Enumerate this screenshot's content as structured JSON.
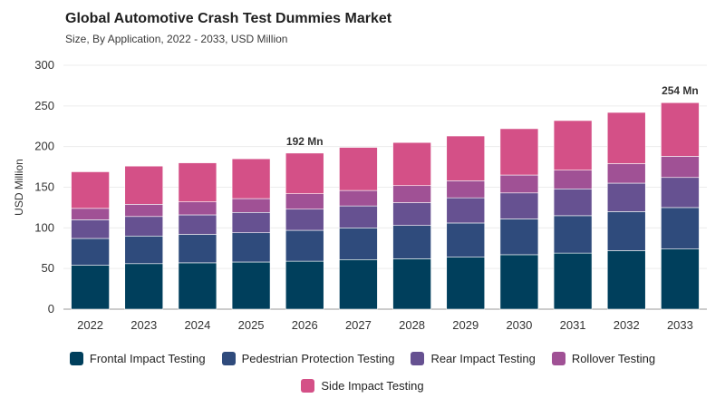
{
  "header": {
    "title": "Global Automotive Crash Test Dummies Market",
    "subtitle": "Size, By Application, 2022 - 2033, USD Million"
  },
  "chart_data": {
    "type": "bar",
    "stacked": true,
    "ylabel": "USD Million",
    "xlabel": "",
    "ylim": [
      0,
      300
    ],
    "yticks": [
      0,
      50,
      100,
      150,
      200,
      250,
      300
    ],
    "grid": true,
    "legend_position": "bottom",
    "categories": [
      "2022",
      "2023",
      "2024",
      "2025",
      "2026",
      "2027",
      "2028",
      "2029",
      "2030",
      "2031",
      "2032",
      "2033"
    ],
    "series": [
      {
        "name": "Frontal Impact Testing",
        "color": "#003f5c",
        "values": [
          54,
          56,
          57,
          58,
          59,
          61,
          62,
          64,
          67,
          69,
          72,
          74
        ]
      },
      {
        "name": "Pedestrian Protection Testing",
        "color": "#2f4b7c",
        "values": [
          33,
          34,
          35,
          36,
          38,
          39,
          41,
          42,
          44,
          46,
          48,
          51
        ]
      },
      {
        "name": "Rear Impact Testing",
        "color": "#665191",
        "values": [
          23,
          24,
          24,
          25,
          26,
          27,
          28,
          31,
          32,
          33,
          35,
          37
        ]
      },
      {
        "name": "Rollover Testing",
        "color": "#a05195",
        "values": [
          14,
          15,
          16,
          17,
          19,
          19,
          21,
          21,
          22,
          23,
          24,
          26
        ]
      },
      {
        "name": "Side Impact Testing",
        "color": "#d45087",
        "values": [
          45,
          47,
          48,
          49,
          50,
          53,
          53,
          55,
          57,
          61,
          63,
          66
        ]
      }
    ],
    "annotations": [
      {
        "category": "2026",
        "text": "192 Mn"
      },
      {
        "category": "2033",
        "text": "254 Mn"
      }
    ]
  }
}
